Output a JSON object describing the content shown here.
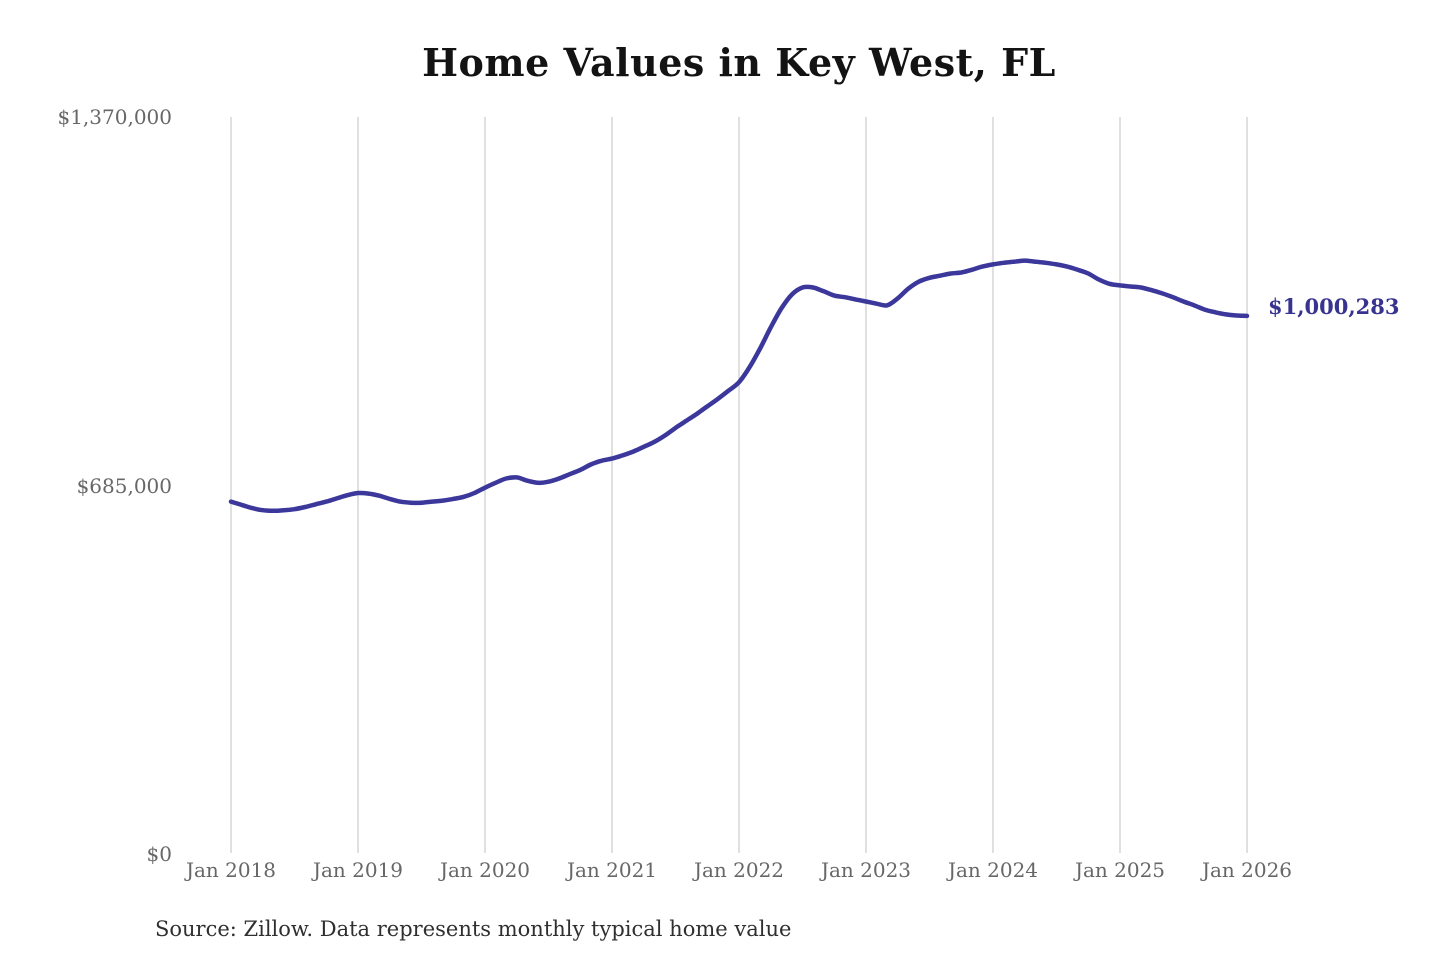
{
  "chart": {
    "title": "Home Values in Key West, FL",
    "end_label": "$1,000,283",
    "source": "Source: Zillow. Data represents monthly typical home value",
    "colors": {
      "line": "#3b379b",
      "end_label": "#37338f",
      "grid": "#cccccc",
      "axis_text": "#676767",
      "title_text": "#131313",
      "source_text": "#2f2f2f",
      "background": "#ffffff"
    }
  },
  "chart_data": {
    "type": "line",
    "title": "Home Values in Key West, FL",
    "xlabel": "",
    "ylabel": "",
    "ylim": [
      0,
      1370000
    ],
    "grid": "vertical-only",
    "legend": "none",
    "x_start": "Jan 2018",
    "x_end": "Jan 2026",
    "x_interval": "monthly",
    "x_tick_labels": [
      "Jan 2018",
      "Jan 2019",
      "Jan 2020",
      "Jan 2021",
      "Jan 2022",
      "Jan 2023",
      "Jan 2024",
      "Jan 2025",
      "Jan 2026"
    ],
    "y_ticks": [
      {
        "value": 0,
        "label": "$0"
      },
      {
        "value": 685000,
        "label": "$685,000"
      },
      {
        "value": 1370000,
        "label": "$1,370,000"
      }
    ],
    "last_value": 1000283,
    "last_value_label": "$1,000,283",
    "series": [
      {
        "name": "Monthly typical home value",
        "values": [
          655000,
          649000,
          643000,
          639000,
          638000,
          639000,
          641000,
          645000,
          650000,
          655000,
          661000,
          667000,
          671000,
          670000,
          666000,
          660000,
          655000,
          653000,
          653000,
          655000,
          657000,
          660000,
          664000,
          671000,
          681000,
          690000,
          698000,
          700000,
          694000,
          690000,
          692000,
          698000,
          706000,
          714000,
          724000,
          731000,
          735000,
          741000,
          748000,
          757000,
          766000,
          778000,
          792000,
          805000,
          818000,
          832000,
          846000,
          861000,
          877000,
          905000,
          940000,
          979000,
          1014000,
          1040000,
          1053000,
          1053000,
          1046000,
          1038000,
          1035000,
          1031000,
          1027000,
          1023000,
          1020000,
          1033000,
          1051000,
          1064000,
          1071000,
          1075000,
          1079000,
          1081000,
          1086000,
          1092000,
          1096000,
          1099000,
          1101000,
          1103000,
          1101000,
          1099000,
          1096000,
          1092000,
          1086000,
          1079000,
          1068000,
          1060000,
          1057000,
          1055000,
          1053000,
          1048000,
          1042000,
          1035000,
          1027000,
          1020000,
          1012000,
          1007000,
          1003000,
          1001000,
          1000283
        ]
      }
    ]
  }
}
